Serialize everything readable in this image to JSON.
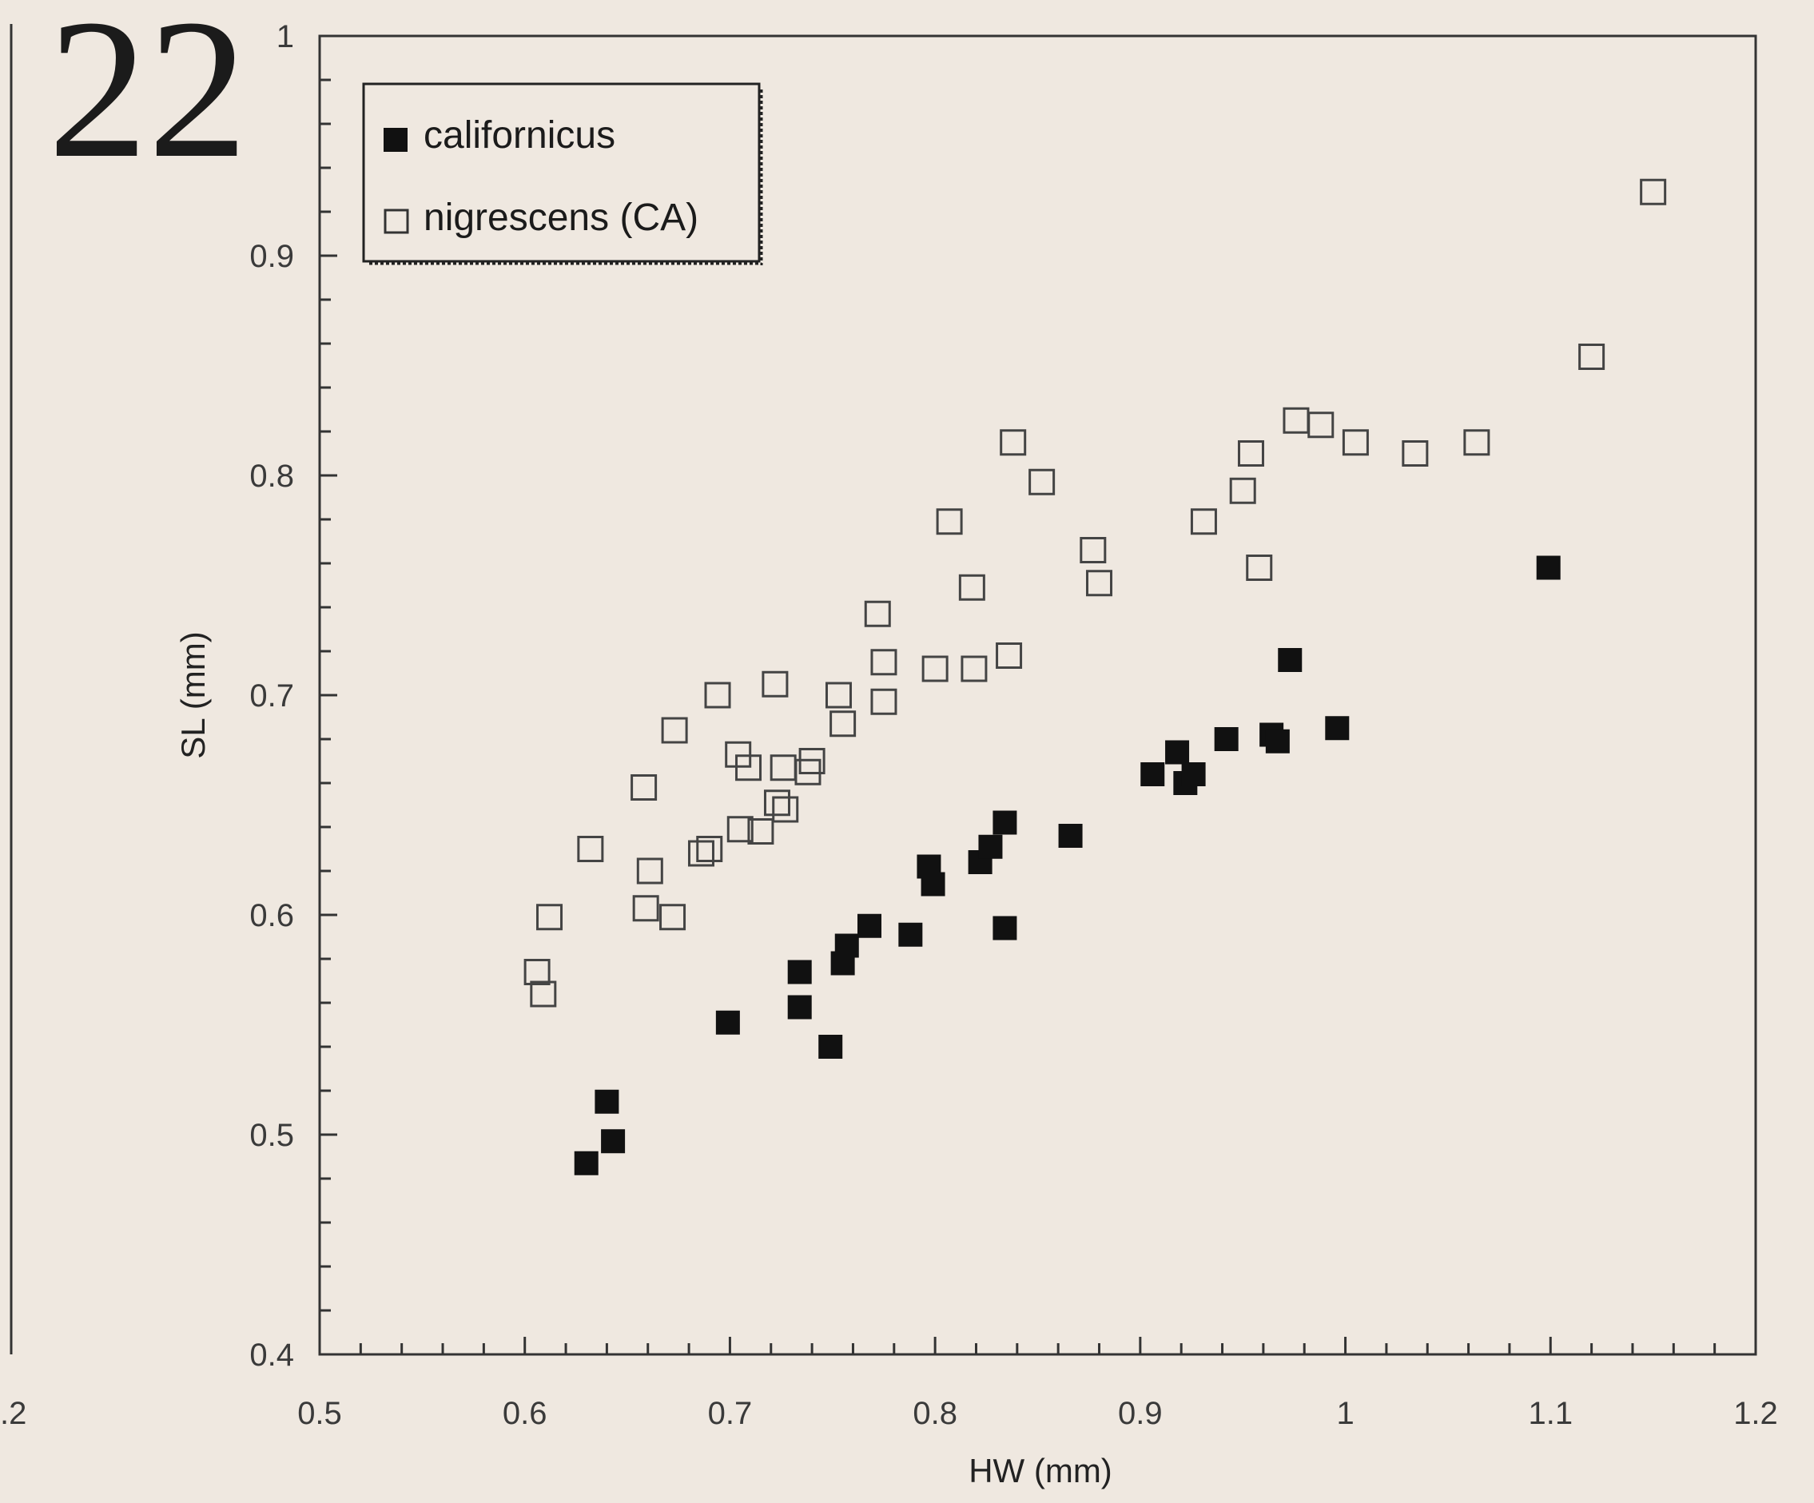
{
  "figure_number": "22",
  "left_fragment_label": ".2",
  "chart_data": {
    "type": "scatter",
    "xlabel": "HW (mm)",
    "ylabel": "SL (mm)",
    "xlim": [
      0.5,
      1.2
    ],
    "ylim": [
      0.4,
      1.0
    ],
    "xticks": [
      "0.5",
      "0.6",
      "0.7",
      "0.8",
      "0.9",
      "1",
      "1.1",
      "1.2"
    ],
    "yticks": [
      "0.4",
      "0.5",
      "0.6",
      "0.7",
      "0.8",
      "0.9",
      "1"
    ],
    "grid": false,
    "legend_position": "top-left",
    "series": [
      {
        "name": "californicus",
        "marker": "filled-square",
        "color": "#111111",
        "points": [
          [
            0.63,
            0.487
          ],
          [
            0.64,
            0.515
          ],
          [
            0.643,
            0.497
          ],
          [
            0.699,
            0.551
          ],
          [
            0.734,
            0.574
          ],
          [
            0.734,
            0.558
          ],
          [
            0.749,
            0.54
          ],
          [
            0.755,
            0.578
          ],
          [
            0.757,
            0.586
          ],
          [
            0.768,
            0.595
          ],
          [
            0.788,
            0.591
          ],
          [
            0.797,
            0.622
          ],
          [
            0.799,
            0.614
          ],
          [
            0.822,
            0.624
          ],
          [
            0.827,
            0.631
          ],
          [
            0.834,
            0.642
          ],
          [
            0.834,
            0.594
          ],
          [
            0.866,
            0.636
          ],
          [
            0.906,
            0.664
          ],
          [
            0.918,
            0.674
          ],
          [
            0.922,
            0.66
          ],
          [
            0.926,
            0.664
          ],
          [
            0.942,
            0.68
          ],
          [
            0.964,
            0.682
          ],
          [
            0.967,
            0.679
          ],
          [
            0.973,
            0.716
          ],
          [
            0.996,
            0.685
          ],
          [
            1.099,
            0.758
          ]
        ]
      },
      {
        "name": "nigrescens (CA)",
        "marker": "open-square",
        "color": "#444444",
        "points": [
          [
            0.606,
            0.574
          ],
          [
            0.609,
            0.564
          ],
          [
            0.612,
            0.599
          ],
          [
            0.632,
            0.63
          ],
          [
            0.658,
            0.658
          ],
          [
            0.659,
            0.603
          ],
          [
            0.661,
            0.62
          ],
          [
            0.672,
            0.599
          ],
          [
            0.673,
            0.684
          ],
          [
            0.686,
            0.628
          ],
          [
            0.69,
            0.63
          ],
          [
            0.694,
            0.7
          ],
          [
            0.704,
            0.673
          ],
          [
            0.705,
            0.639
          ],
          [
            0.709,
            0.667
          ],
          [
            0.715,
            0.638
          ],
          [
            0.722,
            0.705
          ],
          [
            0.723,
            0.651
          ],
          [
            0.726,
            0.667
          ],
          [
            0.727,
            0.648
          ],
          [
            0.738,
            0.665
          ],
          [
            0.74,
            0.67
          ],
          [
            0.753,
            0.7
          ],
          [
            0.755,
            0.687
          ],
          [
            0.772,
            0.737
          ],
          [
            0.775,
            0.697
          ],
          [
            0.775,
            0.715
          ],
          [
            0.8,
            0.712
          ],
          [
            0.807,
            0.779
          ],
          [
            0.818,
            0.749
          ],
          [
            0.819,
            0.712
          ],
          [
            0.836,
            0.718
          ],
          [
            0.838,
            0.815
          ],
          [
            0.852,
            0.797
          ],
          [
            0.877,
            0.766
          ],
          [
            0.88,
            0.751
          ],
          [
            0.931,
            0.779
          ],
          [
            0.95,
            0.793
          ],
          [
            0.954,
            0.81
          ],
          [
            0.958,
            0.758
          ],
          [
            0.976,
            0.825
          ],
          [
            0.988,
            0.823
          ],
          [
            1.005,
            0.815
          ],
          [
            1.034,
            0.81
          ],
          [
            1.064,
            0.815
          ],
          [
            1.12,
            0.854
          ],
          [
            1.15,
            0.929
          ]
        ]
      }
    ]
  }
}
